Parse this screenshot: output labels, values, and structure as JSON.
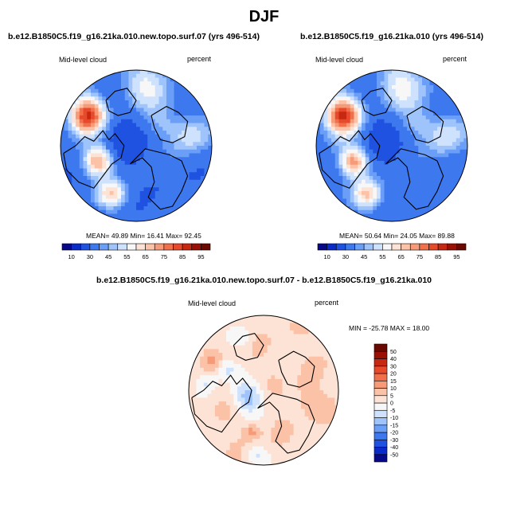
{
  "page": {
    "season_title": "DJF"
  },
  "chart_data": [
    {
      "type": "heatmap",
      "projection": "north polar stereographic",
      "title": "b.e12.B1850C5.f19_g16.21ka.010.new.topo.surf.07 (yrs 496-514)",
      "left_label": "Mid-level cloud",
      "units": "percent",
      "stats_text": "MEAN=  49.89  Min=  16.41  Max=  92.45",
      "stats": {
        "mean": 49.89,
        "min": 16.41,
        "max": 92.45
      },
      "colorbar": {
        "orientation": "horizontal",
        "levels": [
          10,
          20,
          30,
          40,
          45,
          50,
          55,
          60,
          65,
          70,
          75,
          80,
          85,
          90,
          95
        ],
        "tick_labels": [
          "10",
          "30",
          "45",
          "55",
          "65",
          "75",
          "85",
          "95"
        ],
        "colors": [
          "#08088a",
          "#0a2bc9",
          "#1f52e0",
          "#3d78ee",
          "#6a9ef7",
          "#9fc4fb",
          "#cfe2fd",
          "#f7f7f7",
          "#fde3d6",
          "#fbc2a7",
          "#f79a78",
          "#f0704c",
          "#e64a2b",
          "#c72812",
          "#9b1005",
          "#6b0800"
        ]
      }
    },
    {
      "type": "heatmap",
      "projection": "north polar stereographic",
      "title": "b.e12.B1850C5.f19_g16.21ka.010 (yrs 496-514)",
      "left_label": "Mid-level cloud",
      "units": "percent",
      "stats_text": "MEAN=  50.64  Min=  24.05  Max=  89.88",
      "stats": {
        "mean": 50.64,
        "min": 24.05,
        "max": 89.88
      },
      "colorbar": {
        "orientation": "horizontal",
        "levels": [
          10,
          20,
          30,
          40,
          45,
          50,
          55,
          60,
          65,
          70,
          75,
          80,
          85,
          90,
          95
        ],
        "tick_labels": [
          "10",
          "30",
          "45",
          "55",
          "65",
          "75",
          "85",
          "95"
        ],
        "colors": [
          "#08088a",
          "#0a2bc9",
          "#1f52e0",
          "#3d78ee",
          "#6a9ef7",
          "#9fc4fb",
          "#cfe2fd",
          "#f7f7f7",
          "#fde3d6",
          "#fbc2a7",
          "#f79a78",
          "#f0704c",
          "#e64a2b",
          "#c72812",
          "#9b1005",
          "#6b0800"
        ]
      }
    },
    {
      "type": "heatmap",
      "projection": "north polar stereographic",
      "title": "b.e12.B1850C5.f19_g16.21ka.010.new.topo.surf.07 - b.e12.B1850C5.f19_g16.21ka.010",
      "left_label": "Mid-level cloud",
      "units": "percent",
      "stats_text": "MIN = -25.78 MAX =  18.00",
      "stats": {
        "min": -25.78,
        "max": 18.0
      },
      "colorbar": {
        "orientation": "vertical",
        "levels": [
          -50,
          -40,
          -30,
          -20,
          -15,
          -10,
          -5,
          0,
          5,
          10,
          15,
          20,
          30,
          40,
          50
        ],
        "tick_labels": [
          "-50",
          "-40",
          "-30",
          "-20",
          "-15",
          "-10",
          "-5",
          "0",
          "5",
          "10",
          "15",
          "20",
          "30",
          "40",
          "50"
        ],
        "colors": [
          "#08088a",
          "#0a2bc9",
          "#1f52e0",
          "#3d78ee",
          "#6a9ef7",
          "#9fc4fb",
          "#cfe2fd",
          "#f7f7f7",
          "#fde3d6",
          "#fbc2a7",
          "#f79a78",
          "#f0704c",
          "#e64a2b",
          "#c72812",
          "#9b1005",
          "#6b0800"
        ]
      }
    }
  ]
}
